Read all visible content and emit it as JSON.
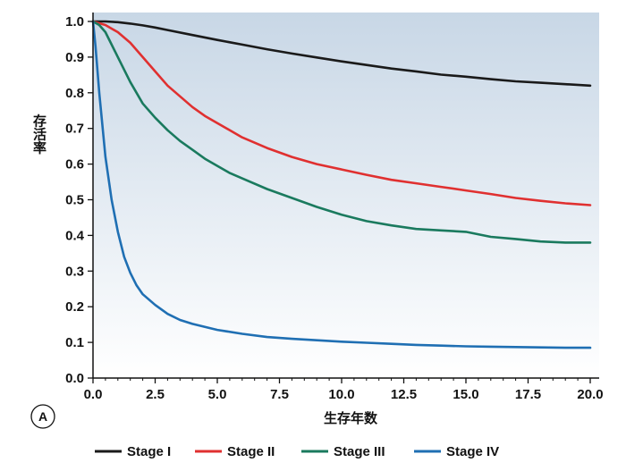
{
  "panel_label": "A",
  "chart_data": {
    "type": "line",
    "title": "",
    "xlabel": "生存年数",
    "ylabel": "存活率",
    "xlim": [
      0,
      20
    ],
    "ylim": [
      0,
      1
    ],
    "xticks": [
      0,
      2.5,
      5,
      7.5,
      10,
      12.5,
      15,
      17.5,
      20
    ],
    "xtick_labels": [
      "0.0",
      "2.5",
      "5.0",
      "7.5",
      "10.0",
      "12.5",
      "15.0",
      "17.5",
      "20.0"
    ],
    "yticks": [
      0,
      0.1,
      0.2,
      0.3,
      0.4,
      0.5,
      0.6,
      0.7,
      0.8,
      0.9,
      1.0
    ],
    "ytick_labels": [
      "0.0",
      "0.1",
      "0.2",
      "0.3",
      "0.4",
      "0.5",
      "0.6",
      "0.7",
      "0.8",
      "0.9",
      "1.0"
    ],
    "grid": false,
    "background": "gradient light-blue (top) to white (bottom)",
    "legend_position": "bottom",
    "series": [
      {
        "name": "Stage I",
        "color": "#1a1a1a",
        "x": [
          0,
          0.5,
          1,
          1.5,
          2,
          2.5,
          3,
          4,
          5,
          6,
          7,
          8,
          9,
          10,
          11,
          12,
          13,
          14,
          15,
          16,
          17,
          18,
          19,
          20
        ],
        "y": [
          1.0,
          1.0,
          0.998,
          0.994,
          0.989,
          0.983,
          0.976,
          0.962,
          0.948,
          0.935,
          0.922,
          0.91,
          0.899,
          0.888,
          0.878,
          0.868,
          0.86,
          0.851,
          0.845,
          0.838,
          0.832,
          0.828,
          0.824,
          0.82
        ]
      },
      {
        "name": "Stage II",
        "color": "#e03030",
        "x": [
          0,
          0.5,
          1,
          1.5,
          2,
          2.5,
          3,
          3.5,
          4,
          4.5,
          5,
          6,
          7,
          8,
          9,
          10,
          11,
          12,
          13,
          14,
          15,
          16,
          17,
          18,
          19,
          20
        ],
        "y": [
          1.0,
          0.99,
          0.97,
          0.94,
          0.9,
          0.86,
          0.82,
          0.79,
          0.76,
          0.735,
          0.715,
          0.675,
          0.645,
          0.62,
          0.6,
          0.585,
          0.57,
          0.556,
          0.546,
          0.536,
          0.526,
          0.516,
          0.505,
          0.497,
          0.49,
          0.485
        ]
      },
      {
        "name": "Stage III",
        "color": "#1a7a5e",
        "x": [
          0,
          0.25,
          0.5,
          1,
          1.5,
          2,
          2.5,
          3,
          3.5,
          4,
          4.5,
          5,
          5.5,
          6,
          7,
          8,
          9,
          10,
          11,
          12,
          13,
          14,
          15,
          16,
          17,
          18,
          19,
          20
        ],
        "y": [
          1.0,
          0.99,
          0.97,
          0.9,
          0.83,
          0.77,
          0.73,
          0.695,
          0.665,
          0.64,
          0.615,
          0.595,
          0.575,
          0.56,
          0.53,
          0.505,
          0.48,
          0.458,
          0.44,
          0.428,
          0.418,
          0.414,
          0.41,
          0.396,
          0.39,
          0.383,
          0.38,
          0.38
        ]
      },
      {
        "name": "Stage IV",
        "color": "#1f6fb3",
        "x": [
          0,
          0.1,
          0.25,
          0.5,
          0.75,
          1,
          1.25,
          1.5,
          1.75,
          2,
          2.5,
          3,
          3.5,
          4,
          5,
          6,
          7,
          8,
          9,
          10,
          11,
          12,
          13,
          14,
          15,
          16,
          17,
          18,
          19,
          20
        ],
        "y": [
          1.0,
          0.93,
          0.8,
          0.62,
          0.5,
          0.41,
          0.34,
          0.295,
          0.26,
          0.235,
          0.205,
          0.18,
          0.163,
          0.152,
          0.135,
          0.124,
          0.115,
          0.11,
          0.106,
          0.102,
          0.099,
          0.096,
          0.093,
          0.091,
          0.089,
          0.088,
          0.087,
          0.086,
          0.085,
          0.085
        ]
      }
    ]
  }
}
